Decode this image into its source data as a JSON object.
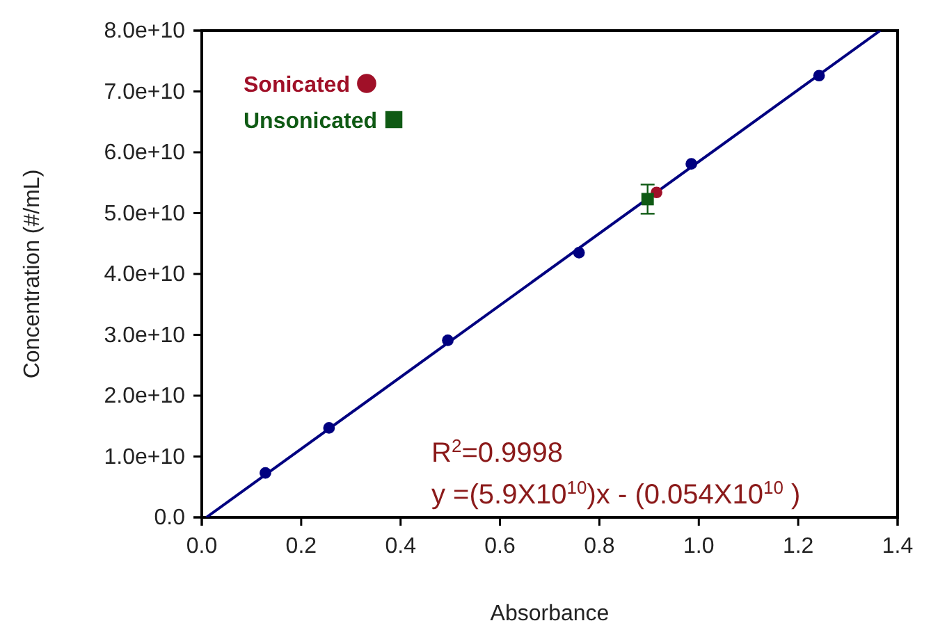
{
  "chart_data": {
    "type": "scatter",
    "xlabel": "Absorbance",
    "ylabel": "Concentration (#/mL)",
    "xlim": [
      0,
      1.4
    ],
    "xticks": [
      {
        "value": 0,
        "label": "0.0"
      },
      0.2,
      0.4,
      0.6,
      0.8,
      {
        "value": 1,
        "label": "1.0"
      },
      1.2,
      1.4
    ],
    "ylim": [
      0,
      80000000000.0
    ],
    "yticks": [
      {
        "value": 0,
        "label": "0.0"
      },
      {
        "value": 10000000000.0,
        "label": "1.0e+10"
      },
      {
        "value": 20000000000.0,
        "label": "2.0e+10"
      },
      {
        "value": 30000000000.0,
        "label": "3.0e+10"
      },
      {
        "value": 40000000000.0,
        "label": "4.0e+10"
      },
      {
        "value": 50000000000.0,
        "label": "5.0e+10"
      },
      {
        "value": 60000000000.0,
        "label": "6.0e+10"
      },
      {
        "value": 70000000000.0,
        "label": "7.0e+10"
      },
      {
        "value": 80000000000.0,
        "label": "8.0e+10"
      }
    ],
    "grid": false,
    "legend": "top left",
    "series": [
      {
        "type": "line",
        "color": "#000080",
        "marker": "none",
        "line_style": "solid",
        "x": [
          0.0092,
          1.365
        ],
        "values": [
          0,
          80000000000.0
        ]
      },
      {
        "type": "scatter",
        "color": "#000080",
        "marker": "circle",
        "x": [
          0.128,
          0.256,
          0.495,
          0.759,
          0.985,
          1.242
        ],
        "values": [
          7300000000.0,
          14700000000.0,
          29100000000.0,
          43500000000.0,
          58100000000.0,
          72600000000.0
        ]
      },
      {
        "type": "scatter",
        "name": "Sonicated",
        "color": "#a01028",
        "marker": "circle",
        "x": [
          0.915
        ],
        "values": [
          53400000000.0
        ]
      },
      {
        "type": "scatter",
        "name": "Unsonicated",
        "color": "#0f5a14",
        "marker": "square",
        "x": [
          0.897
        ],
        "values": [
          52300000000.0
        ],
        "errors": [
          2400000000.0
        ]
      }
    ],
    "annotations": [
      "R$^{2}$=0.9998",
      "y =(5.9X10$^{10}$)x - (0.054X10$^{10}$ )"
    ]
  }
}
